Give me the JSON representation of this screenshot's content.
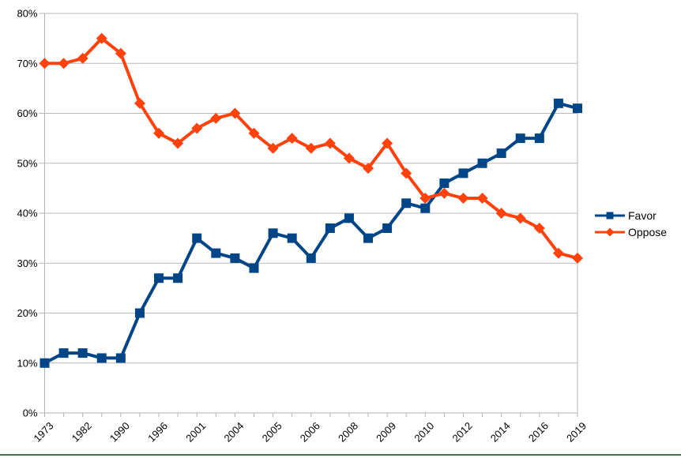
{
  "chart_data": {
    "type": "line",
    "title": "",
    "xlabel": "",
    "ylabel": "",
    "ylim": [
      0,
      80
    ],
    "y_tick_step": 10,
    "y_tick_labels": [
      "0%",
      "10%",
      "20%",
      "30%",
      "40%",
      "50%",
      "60%",
      "70%",
      "80%"
    ],
    "x_tick_labels": [
      "1973",
      "",
      "1982",
      "",
      "1990",
      "",
      "1996",
      "",
      "2001",
      "",
      "2004",
      "",
      "2005",
      "",
      "2006",
      "",
      "2008",
      "",
      "2009",
      "",
      "2010",
      "",
      "2012",
      "",
      "2014",
      "",
      "2016",
      "",
      "2019"
    ],
    "grid": "horizontal",
    "legend_position": "right",
    "series": [
      {
        "name": "Favor",
        "marker": "square",
        "color": "#004586",
        "values": [
          10,
          12,
          12,
          11,
          11,
          20,
          27,
          27,
          35,
          32,
          31,
          29,
          36,
          35,
          31,
          37,
          39,
          35,
          37,
          42,
          41,
          46,
          48,
          50,
          52,
          55,
          55,
          62,
          61
        ]
      },
      {
        "name": "Oppose",
        "marker": "diamond",
        "color": "#FF420E",
        "values": [
          70,
          70,
          71,
          75,
          72,
          62,
          56,
          54,
          57,
          59,
          60,
          56,
          53,
          55,
          53,
          54,
          51,
          49,
          54,
          48,
          43,
          44,
          43,
          43,
          40,
          39,
          37,
          32,
          31
        ]
      }
    ]
  },
  "colors": {
    "background": "#ffffff",
    "grid_line": "#b9b9b9",
    "axis_line": "#b3b3b3",
    "label_text": "#000000",
    "bottom_edge": "#447744"
  }
}
